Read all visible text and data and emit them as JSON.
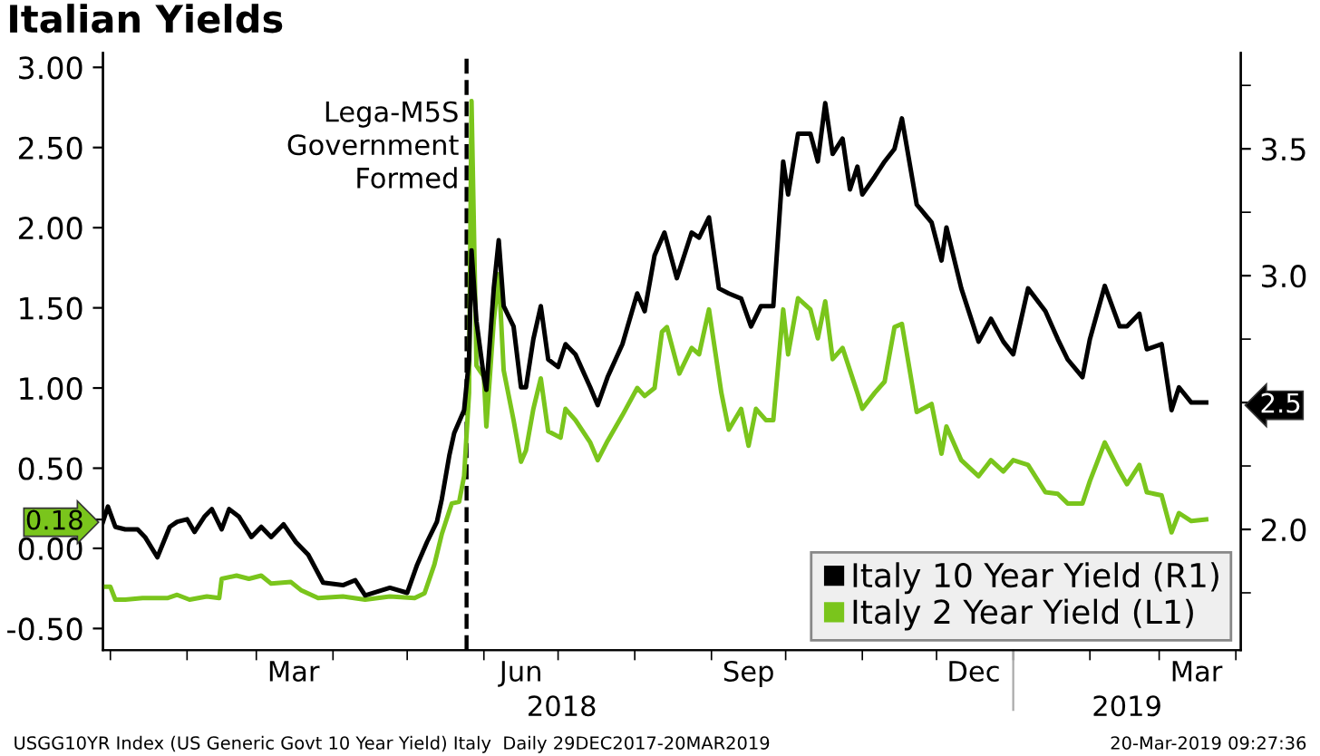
{
  "chart_data": {
    "type": "line",
    "title": "Italian Yields",
    "annotations": [
      "USGG10YR Index (US Generic Govt 10 Year Yield) Italy  Daily 29DEC2017-20MAR2019",
      "20-Mar-2019 09:27:36",
      "2018",
      "2019"
    ],
    "xlim": [
      "2017-12-29",
      "2019-04-03"
    ],
    "xticks": [
      {
        "value": "2018-01-01",
        "label": null
      },
      {
        "value": "2018-02-01",
        "label": null
      },
      {
        "value": "2018-03-01",
        "label": null
      },
      {
        "value": "2018-04-01",
        "label": null
      },
      {
        "value": "2018-05-01",
        "label": null
      },
      {
        "value": "2018-06-01",
        "label": null
      },
      {
        "value": "2018-07-01",
        "label": null
      },
      {
        "value": "2018-08-01",
        "label": null
      },
      {
        "value": "2018-09-01",
        "label": null
      },
      {
        "value": "2018-10-01",
        "label": null
      },
      {
        "value": "2018-11-01",
        "label": null
      },
      {
        "value": "2018-12-01",
        "label": null
      },
      {
        "value": "2019-01-01",
        "label": null
      },
      {
        "value": "2019-02-01",
        "label": null
      },
      {
        "value": "2019-03-01",
        "label": null
      },
      {
        "value": "2019-04-01",
        "label": null
      },
      {
        "value": "2018-03-16",
        "label": "Mar"
      },
      {
        "value": "2018-06-16",
        "label": "Jun"
      },
      {
        "value": "2018-09-16",
        "label": "Sep"
      },
      {
        "value": "2018-12-16",
        "label": "Dec"
      },
      {
        "value": "2019-03-16",
        "label": "Mar"
      }
    ],
    "ylim": [
      -0.635,
      3.09
    ],
    "yticks": [
      {
        "value": -0.5,
        "label": "-0.50"
      },
      {
        "value": 0,
        "label": "0.00"
      },
      {
        "value": 0.18,
        "label": "0.18"
      },
      {
        "value": 0.5,
        "label": "0.50"
      },
      {
        "value": 1,
        "label": "1.00"
      },
      {
        "value": 1.5,
        "label": "1.50"
      },
      {
        "value": 2,
        "label": "2.00"
      },
      {
        "value": 2.5,
        "label": "2.50"
      },
      {
        "value": 3,
        "label": "3.00"
      }
    ],
    "y2lim": [
      1.524,
      3.878
    ],
    "y2ticks": [
      {
        "value": 1.75,
        "label": null
      },
      {
        "value": 2.0,
        "label": "2.0"
      },
      {
        "value": 2.25,
        "label": null
      },
      {
        "value": 2.5,
        "label": "2.5"
      },
      {
        "value": 2.75,
        "label": null
      },
      {
        "value": 3.0,
        "label": "3.0"
      },
      {
        "value": 3.25,
        "label": null
      },
      {
        "value": 3.5,
        "label": "3.5"
      },
      {
        "value": 3.75,
        "label": null
      }
    ],
    "ref_lines": [
      {
        "axis": "x",
        "value": "2018-05-25",
        "label": "Lega-M5S\nGovernment\nFormed",
        "color": "#000000",
        "line_style": "dashed"
      }
    ],
    "legend": "bottom right",
    "grid": false,
    "marker": "none",
    "line_style": "solid",
    "series": [
      {
        "name": "Italy 10 Year Yield (R1)",
        "color": "#000000",
        "axis": "y2",
        "x": [
          "2017-12-29",
          "2017-12-31",
          "2018-01-03",
          "2018-01-07",
          "2018-01-12",
          "2018-01-15",
          "2018-01-20",
          "2018-01-25",
          "2018-01-28",
          "2018-02-01",
          "2018-02-04",
          "2018-02-08",
          "2018-02-11",
          "2018-02-15",
          "2018-02-18",
          "2018-02-22",
          "2018-02-27",
          "2018-03-03",
          "2018-03-07",
          "2018-03-12",
          "2018-03-17",
          "2018-03-22",
          "2018-03-28",
          "2018-04-05",
          "2018-04-10",
          "2018-04-14",
          "2018-04-24",
          "2018-05-01",
          "2018-05-05",
          "2018-05-09",
          "2018-05-13",
          "2018-05-15",
          "2018-05-18",
          "2018-05-20",
          "2018-05-24",
          "2018-05-26",
          "2018-05-27",
          "2018-05-29",
          "2018-06-01",
          "2018-06-02",
          "2018-06-05",
          "2018-06-07",
          "2018-06-09",
          "2018-06-13",
          "2018-06-16",
          "2018-06-18",
          "2018-06-21",
          "2018-06-24",
          "2018-06-27",
          "2018-07-01",
          "2018-07-04",
          "2018-07-08",
          "2018-07-14",
          "2018-07-17",
          "2018-07-21",
          "2018-07-27",
          "2018-08-02",
          "2018-08-05",
          "2018-08-09",
          "2018-08-13",
          "2018-08-18",
          "2018-08-24",
          "2018-08-27",
          "2018-08-31",
          "2018-09-04",
          "2018-09-08",
          "2018-09-13",
          "2018-09-17",
          "2018-09-21",
          "2018-09-26",
          "2018-09-30",
          "2018-10-02",
          "2018-10-06",
          "2018-10-11",
          "2018-10-14",
          "2018-10-17",
          "2018-10-20",
          "2018-10-24",
          "2018-10-27",
          "2018-10-30",
          "2018-11-01",
          "2018-11-06",
          "2018-11-10",
          "2018-11-14",
          "2018-11-17",
          "2018-11-23",
          "2018-11-29",
          "2018-12-03",
          "2018-12-05",
          "2018-12-11",
          "2018-12-18",
          "2018-12-23",
          "2018-12-28",
          "2019-01-01",
          "2019-01-07",
          "2019-01-14",
          "2019-01-19",
          "2019-01-23",
          "2019-01-29",
          "2019-02-01",
          "2019-02-07",
          "2019-02-13",
          "2019-02-16",
          "2019-02-21",
          "2019-02-24",
          "2019-03-02",
          "2019-03-06",
          "2019-03-09",
          "2019-03-14",
          "2019-03-20"
        ],
        "values": [
          2.03,
          2.09,
          2.01,
          2.0,
          2.0,
          1.97,
          1.89,
          2.01,
          2.03,
          2.04,
          1.99,
          2.05,
          2.08,
          2.0,
          2.08,
          2.05,
          1.97,
          2.01,
          1.97,
          2.02,
          1.95,
          1.9,
          1.79,
          1.78,
          1.8,
          1.74,
          1.77,
          1.75,
          1.86,
          1.95,
          2.03,
          2.12,
          2.29,
          2.38,
          2.47,
          2.67,
          3.1,
          2.82,
          2.6,
          2.55,
          2.95,
          3.14,
          2.88,
          2.8,
          2.56,
          2.56,
          2.75,
          2.88,
          2.67,
          2.64,
          2.73,
          2.69,
          2.56,
          2.49,
          2.6,
          2.73,
          2.93,
          2.86,
          3.08,
          3.17,
          2.99,
          3.17,
          3.15,
          3.23,
          2.95,
          2.93,
          2.91,
          2.8,
          2.88,
          2.88,
          3.45,
          3.32,
          3.56,
          3.56,
          3.45,
          3.68,
          3.48,
          3.54,
          3.34,
          3.43,
          3.32,
          3.39,
          3.45,
          3.5,
          3.62,
          3.28,
          3.21,
          3.06,
          3.19,
          2.95,
          2.74,
          2.83,
          2.74,
          2.69,
          2.95,
          2.86,
          2.75,
          2.67,
          2.6,
          2.75,
          2.96,
          2.8,
          2.8,
          2.85,
          2.71,
          2.73,
          2.47,
          2.56,
          2.5,
          2.5
        ]
      },
      {
        "name": "Italy 2 Year Yield (L1)",
        "color": "#7ac51c",
        "axis": "y",
        "x": [
          "2017-12-29",
          "2018-01-01",
          "2018-01-03",
          "2018-01-07",
          "2018-01-14",
          "2018-01-24",
          "2018-01-28",
          "2018-02-02",
          "2018-02-09",
          "2018-02-14",
          "2018-02-15",
          "2018-02-21",
          "2018-02-26",
          "2018-03-03",
          "2018-03-07",
          "2018-03-15",
          "2018-03-19",
          "2018-03-26",
          "2018-04-05",
          "2018-04-14",
          "2018-04-24",
          "2018-05-04",
          "2018-05-08",
          "2018-05-12",
          "2018-05-15",
          "2018-05-19",
          "2018-05-22",
          "2018-05-24",
          "2018-05-26",
          "2018-05-27",
          "2018-05-29",
          "2018-06-01",
          "2018-06-02",
          "2018-06-05",
          "2018-06-07",
          "2018-06-09",
          "2018-06-13",
          "2018-06-16",
          "2018-06-18",
          "2018-06-21",
          "2018-06-24",
          "2018-06-27",
          "2018-07-02",
          "2018-07-04",
          "2018-07-08",
          "2018-07-14",
          "2018-07-17",
          "2018-07-21",
          "2018-07-27",
          "2018-08-02",
          "2018-08-05",
          "2018-08-09",
          "2018-08-12",
          "2018-08-14",
          "2018-08-19",
          "2018-08-24",
          "2018-08-27",
          "2018-08-31",
          "2018-09-05",
          "2018-09-08",
          "2018-09-13",
          "2018-09-16",
          "2018-09-19",
          "2018-09-23",
          "2018-09-26",
          "2018-09-30",
          "2018-10-02",
          "2018-10-06",
          "2018-10-11",
          "2018-10-14",
          "2018-10-17",
          "2018-10-20",
          "2018-10-24",
          "2018-10-27",
          "2018-10-30",
          "2018-11-01",
          "2018-11-06",
          "2018-11-10",
          "2018-11-14",
          "2018-11-17",
          "2018-11-23",
          "2018-11-29",
          "2018-12-03",
          "2018-12-05",
          "2018-12-11",
          "2018-12-18",
          "2018-12-23",
          "2018-12-28",
          "2019-01-01",
          "2019-01-07",
          "2019-01-14",
          "2019-01-19",
          "2019-01-23",
          "2019-01-29",
          "2019-02-01",
          "2019-02-07",
          "2019-02-13",
          "2019-02-16",
          "2019-02-21",
          "2019-02-24",
          "2019-03-02",
          "2019-03-06",
          "2019-03-09",
          "2019-03-14",
          "2019-03-20"
        ],
        "values": [
          -0.24,
          -0.24,
          -0.32,
          -0.32,
          -0.31,
          -0.31,
          -0.29,
          -0.32,
          -0.3,
          -0.31,
          -0.19,
          -0.17,
          -0.19,
          -0.17,
          -0.22,
          -0.21,
          -0.26,
          -0.31,
          -0.3,
          -0.32,
          -0.3,
          -0.31,
          -0.28,
          -0.1,
          0.09,
          0.28,
          0.29,
          0.45,
          0.97,
          2.79,
          1.14,
          1.07,
          0.76,
          1.42,
          1.71,
          1.11,
          0.8,
          0.54,
          0.61,
          0.87,
          1.06,
          0.73,
          0.69,
          0.87,
          0.8,
          0.66,
          0.55,
          0.67,
          0.83,
          1.0,
          0.95,
          1.0,
          1.35,
          1.38,
          1.09,
          1.25,
          1.21,
          1.49,
          0.97,
          0.74,
          0.87,
          0.64,
          0.87,
          0.8,
          0.8,
          1.49,
          1.21,
          1.56,
          1.49,
          1.31,
          1.54,
          1.18,
          1.25,
          1.11,
          0.97,
          0.87,
          0.97,
          1.04,
          1.38,
          1.4,
          0.85,
          0.9,
          0.59,
          0.76,
          0.55,
          0.45,
          0.55,
          0.48,
          0.55,
          0.52,
          0.35,
          0.34,
          0.28,
          0.28,
          0.42,
          0.66,
          0.48,
          0.4,
          0.52,
          0.35,
          0.33,
          0.1,
          0.22,
          0.17,
          0.18
        ]
      }
    ]
  }
}
